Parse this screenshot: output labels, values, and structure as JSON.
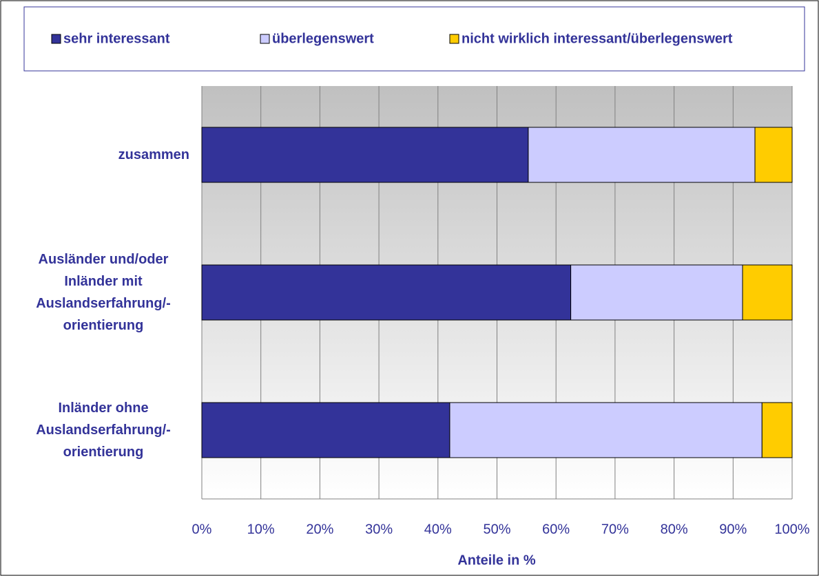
{
  "chart_data": {
    "type": "stacked_barh",
    "categories": [
      "zusammen",
      "Ausländer und/oder Inländer mit Auslandserfahrung/-orientierung",
      "Inländer ohne Auslandserfahrung/-orientierung"
    ],
    "series": [
      {
        "name": "sehr interessant",
        "color": "#333399",
        "values": [
          55.3,
          62.5,
          42.0
        ]
      },
      {
        "name": "überlegenswert",
        "color": "#ccccff",
        "values": [
          38.4,
          29.1,
          52.9
        ]
      },
      {
        "name": "nicht wirklich interessant/überlegenswert",
        "color": "#ffcc00",
        "values": [
          6.3,
          8.4,
          5.1
        ]
      }
    ],
    "xlabel": "Anteile in %",
    "xlim": [
      0,
      100
    ],
    "xticks": [
      {
        "value": 0,
        "label": "0%"
      },
      {
        "value": 10,
        "label": "10%"
      },
      {
        "value": 20,
        "label": "20%"
      },
      {
        "value": 30,
        "label": "30%"
      },
      {
        "value": 40,
        "label": "40%"
      },
      {
        "value": 50,
        "label": "50%"
      },
      {
        "value": 60,
        "label": "60%"
      },
      {
        "value": 70,
        "label": "70%"
      },
      {
        "value": 80,
        "label": "80%"
      },
      {
        "value": 90,
        "label": "90%"
      },
      {
        "value": 100,
        "label": "100%"
      }
    ],
    "grid": true,
    "legend": "top"
  }
}
